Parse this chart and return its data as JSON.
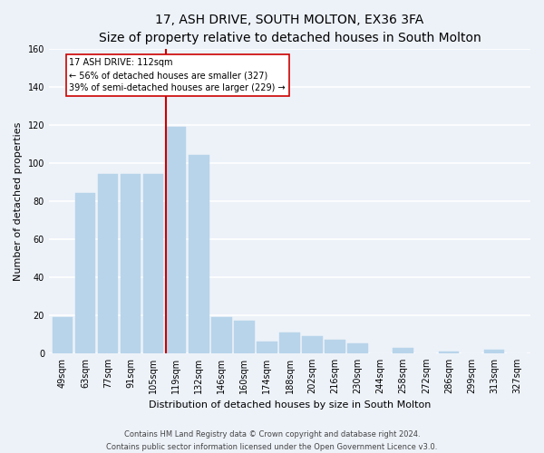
{
  "title": "17, ASH DRIVE, SOUTH MOLTON, EX36 3FA",
  "subtitle": "Size of property relative to detached houses in South Molton",
  "xlabel": "Distribution of detached houses by size in South Molton",
  "ylabel": "Number of detached properties",
  "bar_labels": [
    "49sqm",
    "63sqm",
    "77sqm",
    "91sqm",
    "105sqm",
    "119sqm",
    "132sqm",
    "146sqm",
    "160sqm",
    "174sqm",
    "188sqm",
    "202sqm",
    "216sqm",
    "230sqm",
    "244sqm",
    "258sqm",
    "272sqm",
    "286sqm",
    "299sqm",
    "313sqm",
    "327sqm"
  ],
  "bar_values": [
    19,
    84,
    94,
    94,
    94,
    119,
    104,
    19,
    17,
    6,
    11,
    9,
    7,
    5,
    0,
    3,
    0,
    1,
    0,
    2,
    0
  ],
  "bar_color": "#b8d4ea",
  "bar_edge_color": "#b8d4ea",
  "vline_color": "#cc0000",
  "annotation_text": "17 ASH DRIVE: 112sqm\n← 56% of detached houses are smaller (327)\n39% of semi-detached houses are larger (229) →",
  "annotation_box_edgecolor": "#cc0000",
  "annotation_box_facecolor": "white",
  "ylim": [
    0,
    160
  ],
  "yticks": [
    0,
    20,
    40,
    60,
    80,
    100,
    120,
    140,
    160
  ],
  "footnote1": "Contains HM Land Registry data © Crown copyright and database right 2024.",
  "footnote2": "Contains public sector information licensed under the Open Government Licence v3.0.",
  "background_color": "#edf2f9",
  "grid_color": "white",
  "title_fontsize": 10,
  "label_fontsize": 8,
  "tick_fontsize": 7,
  "footnote_fontsize": 6
}
